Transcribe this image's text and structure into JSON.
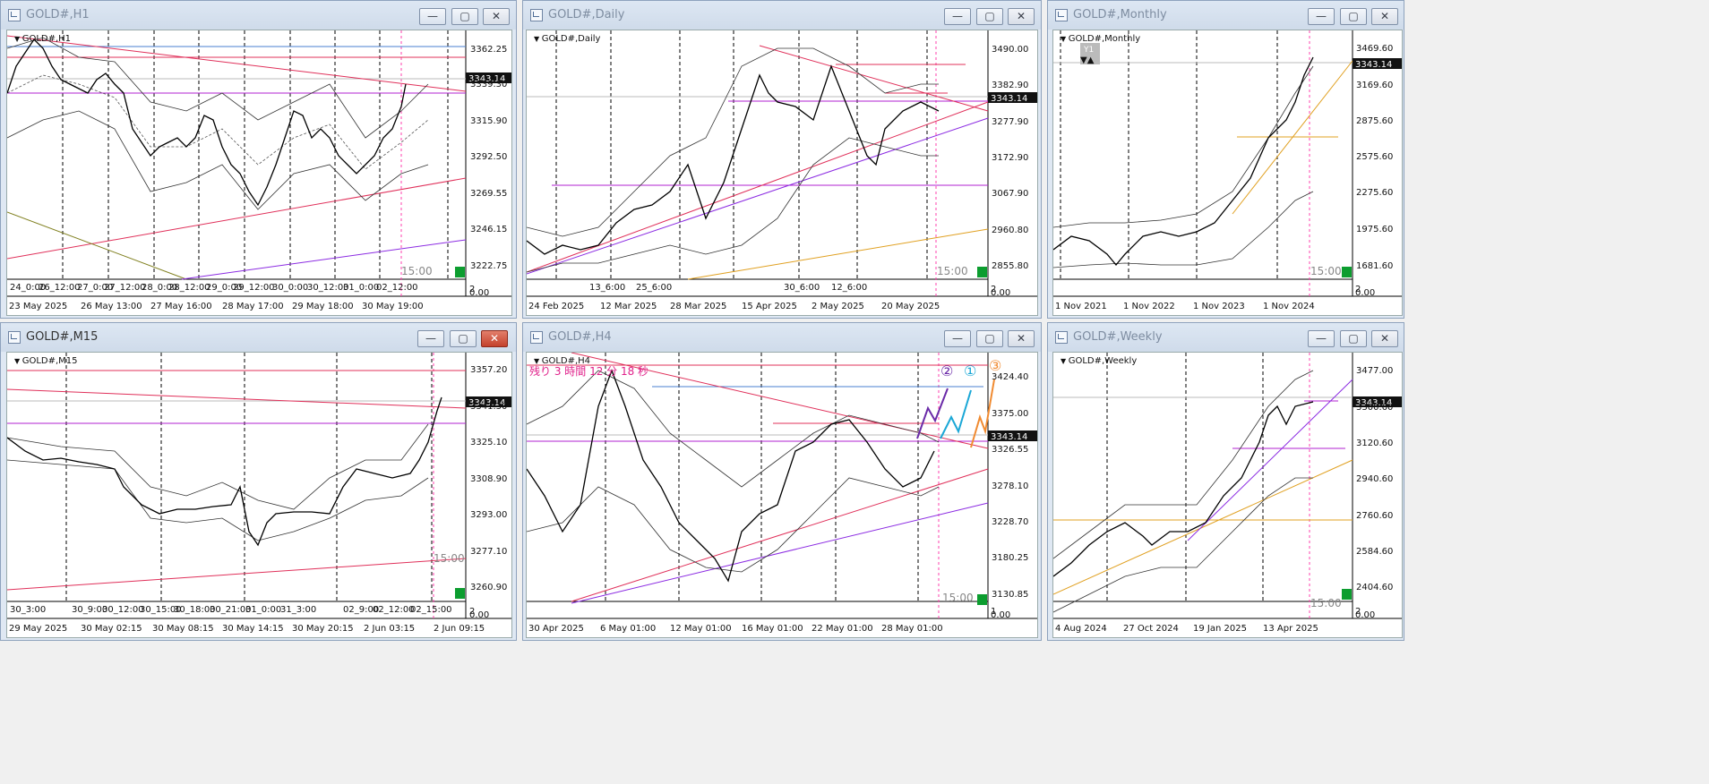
{
  "current_price": "3343.14",
  "timer": "15:00",
  "windows": [
    {
      "title": "GOLD#,H1",
      "symbol": "GOLD#,H1",
      "y_labels": [
        "3362.25",
        "3339.30",
        "3315.90",
        "3292.50",
        "3269.55",
        "3246.15",
        "3222.75"
      ],
      "x_labels": [
        "23 May 2025",
        "26 May 13:00",
        "27 May 16:00",
        "28 May 17:00",
        "29 May 18:00",
        "30 May 19:00"
      ],
      "sub_labels": [
        "24_0:00",
        "26_12:00",
        "27_0:00",
        "27_12:00",
        "28_0:00",
        "28_12:00",
        "29_0:00",
        "29_12:00",
        "30_0:00",
        "30_12:00",
        "31_0:00",
        "02_12:00"
      ],
      "axis_min": "2",
      "axis_zero": "0.00"
    },
    {
      "title": "GOLD#,Daily",
      "symbol": "GOLD#,Daily",
      "y_labels": [
        "3490.00",
        "3382.90",
        "3277.90",
        "3172.90",
        "3067.90",
        "2960.80",
        "2855.80"
      ],
      "x_labels": [
        "24 Feb 2025",
        "12 Mar 2025",
        "28 Mar 2025",
        "15 Apr 2025",
        "2 May 2025",
        "20 May 2025"
      ],
      "sub_labels": [
        "13_6:00",
        "25_6:00",
        "30_6:00",
        "12_6:00"
      ],
      "axis_min": "2",
      "axis_zero": "0.00"
    },
    {
      "title": "GOLD#,Monthly",
      "symbol": "GOLD#,Monthly",
      "y_labels": [
        "3469.60",
        "3169.60",
        "2875.60",
        "2575.60",
        "2275.60",
        "1975.60",
        "1681.60"
      ],
      "x_labels": [
        "1 Nov 2021",
        "1 Nov 2022",
        "1 Nov 2023",
        "1 Nov 2024"
      ],
      "sub_labels": [],
      "badge": "Y1",
      "axis_min": "2",
      "axis_zero": "0.00"
    },
    {
      "title": "GOLD#,M15",
      "symbol": "GOLD#,M15",
      "y_labels": [
        "3357.20",
        "3341.30",
        "3325.10",
        "3308.90",
        "3293.00",
        "3277.10",
        "3260.90"
      ],
      "x_labels": [
        "29 May 2025",
        "30 May 02:15",
        "30 May 08:15",
        "30 May 14:15",
        "30 May 20:15",
        "2 Jun 03:15",
        "2 Jun 09:15"
      ],
      "sub_labels": [
        "30_3:00",
        "30_9:00",
        "30_12:00",
        "30_15:00",
        "30_18:00",
        "30_21:00",
        "31_0:00",
        "31_3:00",
        "02_9:00",
        "02_12:00",
        "02_15:00"
      ],
      "axis_min": "2",
      "axis_zero": "0.00"
    },
    {
      "title": "GOLD#,H4",
      "symbol": "GOLD#,H4",
      "y_labels": [
        "3424.40",
        "3375.00",
        "3326.55",
        "3278.10",
        "3228.70",
        "3180.25",
        "3130.85"
      ],
      "x_labels": [
        "30 Apr 2025",
        "6 May 01:00",
        "12 May 01:00",
        "16 May 01:00",
        "22 May 01:00",
        "28 May 01:00"
      ],
      "sub_labels": [],
      "countdown": "残り 3 時間 12 分 18 秒",
      "markers": [
        "②",
        "①",
        "③"
      ],
      "axis_min": "1",
      "axis_zero": "0.00"
    },
    {
      "title": "GOLD#,Weekly",
      "symbol": "GOLD#,Weekly",
      "y_labels": [
        "3477.00",
        "3300.60",
        "3120.60",
        "2940.60",
        "2760.60",
        "2584.60",
        "2404.60"
      ],
      "x_labels": [
        "4 Aug 2024",
        "27 Oct 2024",
        "19 Jan 2025",
        "13 Apr 2025"
      ],
      "sub_labels": [],
      "axis_min": "2",
      "axis_zero": "0.00"
    }
  ]
}
